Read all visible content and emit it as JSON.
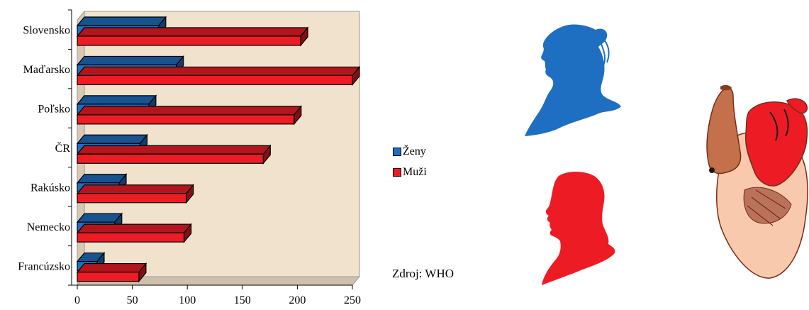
{
  "chart_data": {
    "type": "bar",
    "orientation": "horizontal",
    "categories": [
      "Slovensko",
      "Maďarsko",
      "Poľsko",
      "ČR",
      "Rakúsko",
      "Nemecko",
      "Francúzsko"
    ],
    "series": [
      {
        "name": "Ženy",
        "color": "#1e6fc1",
        "values": [
          74,
          90,
          65,
          57,
          38,
          34,
          18
        ]
      },
      {
        "name": "Muži",
        "color": "#ed1c24",
        "values": [
          203,
          250,
          197,
          169,
          99,
          97,
          56
        ]
      }
    ],
    "xlim": [
      0,
      250
    ],
    "xticks": [
      0,
      50,
      100,
      150,
      200,
      250
    ],
    "grid": false,
    "background": "#f1e2cd",
    "legend_position": "right"
  },
  "legend": {
    "zeny": "Ženy",
    "muzi": "Muži"
  },
  "source": "Zdroj: WHO",
  "colors": {
    "zeny": "#1e6fc1",
    "muzi": "#ed1c24",
    "panel": "#f1e2cd"
  },
  "illustrations": [
    "woman-silhouette",
    "man-silhouette",
    "heart-illustration"
  ]
}
